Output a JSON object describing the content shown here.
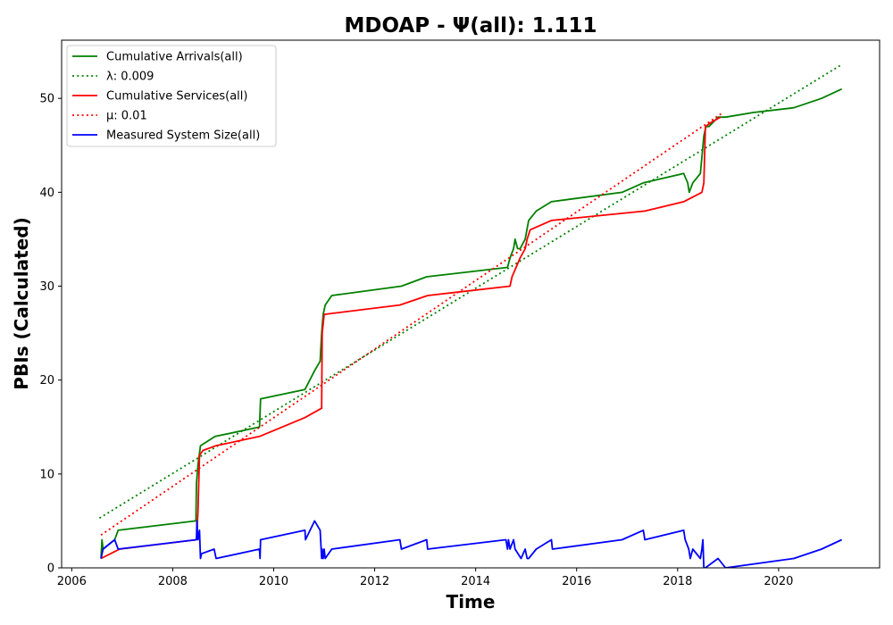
{
  "chart_data": {
    "type": "line",
    "title": "MDOAP -  Ψ(all): 1.111",
    "xlabel": "Time",
    "ylabel": "PBIs (Calculated)",
    "xlim": [
      2005.8,
      2022.0
    ],
    "ylim": [
      0,
      56.2
    ],
    "x_ticks": [
      2006,
      2008,
      2010,
      2012,
      2014,
      2016,
      2018,
      2020
    ],
    "x_tick_labels": [
      "2006",
      "2008",
      "2010",
      "2012",
      "2014",
      "2016",
      "2018",
      "2020"
    ],
    "y_ticks": [
      0,
      10,
      20,
      30,
      40,
      50
    ],
    "y_tick_labels": [
      "0",
      "10",
      "20",
      "30",
      "40",
      "50"
    ],
    "grid": false,
    "legend_position": "top-left",
    "series": [
      {
        "name": "Cumulative Arrivals(all)",
        "color": "#008000",
        "style": "solid",
        "x": [
          2006.58,
          2006.6,
          2006.62,
          2006.85,
          2006.92,
          2008.46,
          2008.47,
          2008.5,
          2008.55,
          2008.84,
          2009.72,
          2009.74,
          2010.62,
          2010.81,
          2010.92,
          2010.95,
          2010.98,
          2011.02,
          2011.15,
          2012.53,
          2013.03,
          2014.63,
          2014.68,
          2014.75,
          2014.78,
          2014.83,
          2014.88,
          2014.98,
          2015.05,
          2015.2,
          2015.5,
          2016.9,
          2017.32,
          2018.12,
          2018.2,
          2018.23,
          2018.3,
          2018.45,
          2018.52,
          2018.56,
          2018.62,
          2018.8,
          2018.95,
          2019.5,
          2020.3,
          2020.85,
          2021.25
        ],
        "values": [
          1,
          3,
          2,
          3,
          4,
          5,
          9,
          11,
          13,
          14,
          15,
          18,
          19,
          21,
          22,
          25,
          27,
          28,
          29,
          30,
          31,
          32,
          33,
          34,
          35,
          34,
          34,
          35,
          37,
          38,
          39,
          40,
          41,
          42,
          41,
          40,
          41,
          42,
          46,
          47,
          47,
          48,
          48,
          48.5,
          49,
          50,
          51
        ]
      },
      {
        "name": "λ: 0.009",
        "color": "#008000",
        "style": "dotted",
        "x": [
          2006.55,
          2021.25
        ],
        "values": [
          5.3,
          53.6
        ]
      },
      {
        "name": "Cumulative Services(all)",
        "color": "#ff0000",
        "style": "solid",
        "x": [
          2006.58,
          2006.95,
          2008.47,
          2008.5,
          2008.53,
          2008.6,
          2008.85,
          2009.72,
          2010.62,
          2010.95,
          2010.96,
          2011.0,
          2012.5,
          2013.05,
          2014.68,
          2014.72,
          2014.8,
          2014.88,
          2014.98,
          2015.02,
          2015.08,
          2015.5,
          2017.35,
          2018.12,
          2018.48,
          2018.52,
          2018.55,
          2018.68,
          2018.85
        ],
        "values": [
          1,
          2,
          3,
          6,
          12,
          12.5,
          13,
          14,
          16,
          17,
          25,
          27,
          28,
          29,
          30,
          31,
          32,
          33,
          34,
          35,
          36,
          37,
          38,
          39,
          40,
          41,
          47,
          47.5,
          48
        ]
      },
      {
        "name": "μ: 0.01",
        "color": "#ff0000",
        "style": "dotted",
        "x": [
          2006.58,
          2018.9
        ],
        "values": [
          3.5,
          48.5
        ]
      },
      {
        "name": "Measured System Size(all)",
        "color": "#0000ff",
        "style": "solid",
        "x": [
          2006.58,
          2006.62,
          2006.85,
          2006.92,
          2008.47,
          2008.48,
          2008.5,
          2008.53,
          2008.55,
          2008.57,
          2008.82,
          2008.86,
          2009.72,
          2009.73,
          2009.74,
          2010.62,
          2010.63,
          2010.81,
          2010.92,
          2010.95,
          2010.96,
          2010.98,
          2011.0,
          2011.02,
          2011.15,
          2012.5,
          2012.53,
          2013.03,
          2013.05,
          2014.6,
          2014.63,
          2014.65,
          2014.68,
          2014.75,
          2014.78,
          2014.9,
          2014.98,
          2015.02,
          2015.05,
          2015.2,
          2015.5,
          2015.52,
          2016.9,
          2017.32,
          2017.35,
          2018.12,
          2018.15,
          2018.22,
          2018.25,
          2018.3,
          2018.45,
          2018.48,
          2018.5,
          2018.52,
          2018.55,
          2018.8,
          2018.95,
          2020.3,
          2020.85,
          2021.25
        ],
        "values": [
          1,
          2,
          3,
          2,
          3,
          5,
          3,
          4,
          1,
          1.5,
          2,
          1,
          2,
          1,
          3,
          4,
          3,
          5,
          4,
          1,
          2,
          1,
          2,
          1,
          2,
          3,
          2,
          3,
          2,
          3,
          2,
          3,
          2,
          3,
          2,
          1,
          2,
          1,
          1,
          2,
          3,
          2,
          3,
          4,
          3,
          4,
          3,
          2,
          1,
          2,
          1,
          2,
          3,
          0,
          0,
          1,
          0,
          1,
          2,
          3
        ]
      }
    ]
  }
}
